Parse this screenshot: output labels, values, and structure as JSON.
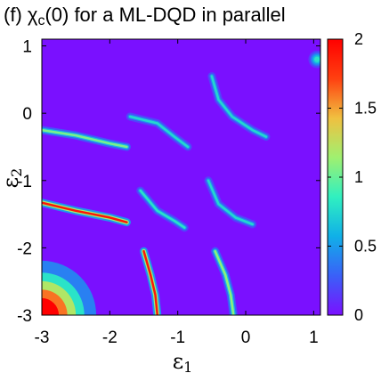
{
  "chart_data": {
    "type": "heatmap",
    "title": "(f) χc(0) for a ML-DQD in parallel",
    "title_parts": [
      "(f) χ",
      "c",
      "(0) for a ML-DQD in parallel"
    ],
    "xlabel": "ε1",
    "xlabel_parts": [
      "ε",
      "1"
    ],
    "ylabel": "ε2",
    "ylabel_parts": [
      "ε",
      "2"
    ],
    "xlim": [
      -3,
      1.1
    ],
    "ylim": [
      -3,
      1.1
    ],
    "xticks": [
      -3,
      -2,
      -1,
      0,
      1
    ],
    "xtick_labels": [
      "-3",
      "-2",
      "-1",
      "0",
      "1"
    ],
    "yticks": [
      -3,
      -2,
      -1,
      0,
      1
    ],
    "ytick_labels": [
      "-3",
      "-2",
      "-1",
      "0",
      "1"
    ],
    "colorbar": {
      "range": [
        0,
        2
      ],
      "ticks": [
        0,
        0.5,
        1,
        1.5,
        2
      ],
      "tick_labels": [
        "0",
        "0.5",
        "1",
        "1.5",
        "2"
      ],
      "colormap": [
        "#7a10ff",
        "#3a60f8",
        "#10b0e8",
        "#30f0c0",
        "#a0f070",
        "#f0c040",
        "#ff4010",
        "#ff0000"
      ]
    },
    "features": [
      {
        "name": "ridge",
        "points": [
          [
            -3.0,
            -0.25
          ],
          [
            -2.5,
            -0.33
          ],
          [
            -2.0,
            -0.45
          ],
          [
            -1.75,
            -0.5
          ]
        ],
        "peak": 1.05
      },
      {
        "name": "ridge",
        "points": [
          [
            -3.0,
            -1.33
          ],
          [
            -2.5,
            -1.45
          ],
          [
            -2.0,
            -1.55
          ],
          [
            -1.75,
            -1.62
          ]
        ],
        "peak": 1.9
      },
      {
        "name": "ridge",
        "points": [
          [
            -1.7,
            -0.05
          ],
          [
            -1.3,
            -0.15
          ],
          [
            -1.05,
            -0.35
          ],
          [
            -0.85,
            -0.5
          ]
        ],
        "peak": 0.75
      },
      {
        "name": "ridge",
        "points": [
          [
            -0.5,
            0.55
          ],
          [
            -0.4,
            0.2
          ],
          [
            -0.2,
            -0.05
          ],
          [
            0.1,
            -0.25
          ],
          [
            0.3,
            -0.35
          ]
        ],
        "peak": 0.75
      },
      {
        "name": "ridge",
        "points": [
          [
            -1.55,
            -1.15
          ],
          [
            -1.3,
            -1.45
          ],
          [
            -1.05,
            -1.6
          ],
          [
            -0.9,
            -1.7
          ]
        ],
        "peak": 0.8
      },
      {
        "name": "ridge",
        "points": [
          [
            -0.55,
            -1.0
          ],
          [
            -0.4,
            -1.35
          ],
          [
            -0.15,
            -1.55
          ],
          [
            0.1,
            -1.65
          ]
        ],
        "peak": 0.75
      },
      {
        "name": "ridge",
        "points": [
          [
            -1.5,
            -2.05
          ],
          [
            -1.4,
            -2.4
          ],
          [
            -1.33,
            -2.7
          ],
          [
            -1.3,
            -3.0
          ]
        ],
        "peak": 1.9
      },
      {
        "name": "ridge",
        "points": [
          [
            -0.45,
            -2.05
          ],
          [
            -0.3,
            -2.4
          ],
          [
            -0.22,
            -2.7
          ],
          [
            -0.18,
            -3.0
          ]
        ],
        "peak": 1.1
      },
      {
        "name": "corner-peak",
        "center": [
          -3.0,
          -3.0
        ],
        "radius": 0.5,
        "peak": 2.0
      },
      {
        "name": "corner-spot",
        "center": [
          1.05,
          0.8
        ],
        "radius": 0.08,
        "peak": 0.8
      }
    ]
  }
}
